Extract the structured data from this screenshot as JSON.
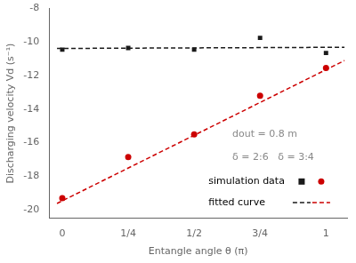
{
  "chart_data": {
    "type": "scatter",
    "xlabel": "Entangle angle θ (π)",
    "ylabel": "Discharging velocity Vd (s⁻¹)",
    "xlim": [
      -0.05,
      1.08
    ],
    "ylim": [
      -20.5,
      -8.0
    ],
    "xticks": [
      0,
      {
        "value": 0.25,
        "label": "1/4"
      },
      {
        "value": 0.5,
        "label": "1/2"
      },
      {
        "value": 0.75,
        "label": "3/4"
      },
      1.0
    ],
    "yticks": [
      -8,
      -10,
      -12,
      -14,
      -16,
      -18,
      -20
    ],
    "grid": false,
    "legend": "lower right",
    "series": [
      {
        "name": "simulation data",
        "type": "scatter",
        "marker": "square",
        "color": "#1a1a1a",
        "x": [
          0,
          0.25,
          0.5,
          0.75,
          1.0
        ],
        "values": [
          -10.45,
          -10.35,
          -10.45,
          -9.75,
          -10.65
        ]
      },
      {
        "name": "simulation data",
        "type": "scatter",
        "marker": "circle",
        "color": "#cc0000",
        "x": [
          0,
          0.25,
          0.5,
          0.75,
          1.0
        ],
        "values": [
          -19.3,
          -16.85,
          -15.5,
          -13.2,
          -11.55
        ]
      },
      {
        "name": "fitted curve",
        "type": "line",
        "line_style": "dashed",
        "color": "#1a1a1a",
        "x": [
          -0.02,
          1.07
        ],
        "values": [
          -10.38,
          -10.31
        ]
      },
      {
        "name": "fitted curve",
        "type": "line",
        "line_style": "dashed",
        "color": "#cc0000",
        "x": [
          -0.02,
          1.07
        ],
        "values": [
          -19.62,
          -11.1
        ]
      }
    ],
    "annotations": [
      {
        "text": "dout = 0.8 m",
        "color": "#888888"
      },
      {
        "text": "δ = 2:6   δ = 3:4",
        "color": "#888888"
      }
    ]
  }
}
